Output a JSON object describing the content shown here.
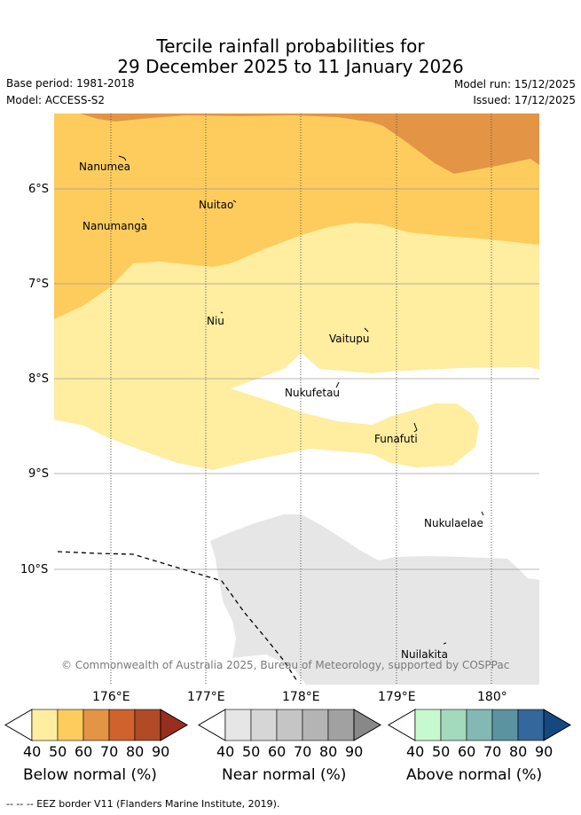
{
  "title_line1": "Tercile rainfall probabilities for",
  "title_line2": "29 December 2025 to 11 January 2026",
  "base_period": "Base period: 1981-2018",
  "model": "Model: ACCESS-S2",
  "model_run": "Model run: 15/12/2025",
  "issued": "Issued: 17/12/2025",
  "latitudes": [
    "6°S",
    "7°S",
    "8°S",
    "9°S",
    "10°S"
  ],
  "longitudes": [
    "176°E",
    "177°E",
    "178°E",
    "179°E",
    "180°"
  ],
  "islands": [
    "Nanumea",
    "Nuitao",
    "Nanumanga",
    "Niu",
    "Vaitupu",
    "Nukufetau",
    "Funafuti",
    "Nukulaelae",
    "Nuilakita"
  ],
  "copyright": "© Commonwealth of Australia 2025, Bureau of Meteorology, supported by COSPPac",
  "colorbars": [
    {
      "label": "Below normal (%)",
      "ticks": [
        "40",
        "50",
        "60",
        "70",
        "80",
        "90"
      ],
      "colors": [
        "#ffeda0",
        "#fecc5c",
        "#e39444",
        "#d0622d",
        "#b04a27",
        "#9a2e1e"
      ]
    },
    {
      "label": "Near normal (%)",
      "ticks": [
        "40",
        "50",
        "60",
        "70",
        "80",
        "90"
      ],
      "colors": [
        "#e6e6e6",
        "#d6d6d6",
        "#c5c5c5",
        "#b4b4b4",
        "#a1a1a1",
        "#888888"
      ]
    },
    {
      "label": "Above normal (%)",
      "ticks": [
        "40",
        "50",
        "60",
        "70",
        "80",
        "90"
      ],
      "colors": [
        "#c7f9cf",
        "#a3d9bd",
        "#83b8b4",
        "#5b93a0",
        "#34679b",
        "#15487e"
      ]
    }
  ],
  "legend_line": "-- -- -- EEZ border V11 (Flanders Marine Institute, 2019).",
  "colors": {
    "below_50": "#ffeda0",
    "below_60": "#fecc5c",
    "below_70": "#e39444",
    "near_50": "#e6e6e6",
    "grid": "#999999"
  }
}
